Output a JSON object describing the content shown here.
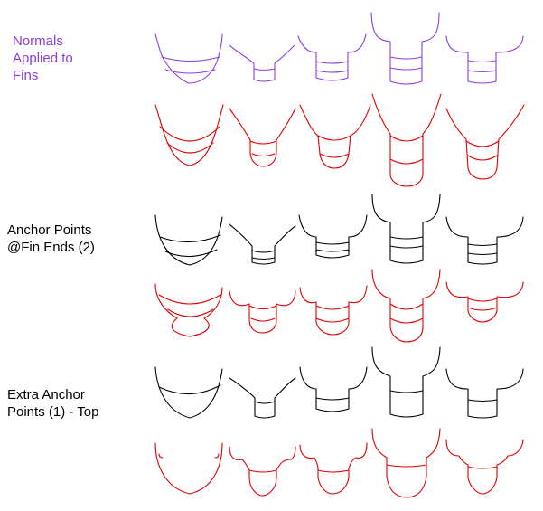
{
  "labels": {
    "normals": "Normals\nApplied to\nFins",
    "anchor_points": "Anchor Points\n@Fin Ends (2)",
    "extra_anchor": "Extra Anchor\nPoints (1) - Top"
  },
  "colors": {
    "purple": "#8a3ee0",
    "red": "#e00000",
    "black": "#000000"
  },
  "rows": [
    {
      "name": "row-normals-purple",
      "color": "purple"
    },
    {
      "name": "row-normals-red",
      "color": "red"
    },
    {
      "name": "row-anchor-black",
      "color": "black"
    },
    {
      "name": "row-anchor-red",
      "color": "red"
    },
    {
      "name": "row-extra-black",
      "color": "black"
    },
    {
      "name": "row-extra-red",
      "color": "red"
    }
  ]
}
